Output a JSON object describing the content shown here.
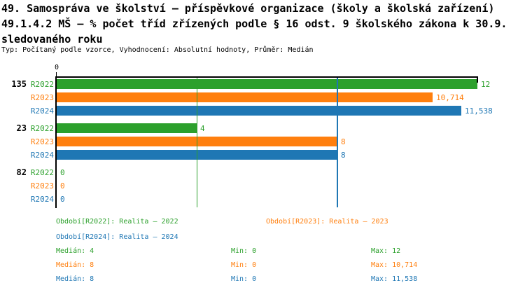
{
  "header": {
    "title_lines": [
      "49. Samospráva ve školství – příspěvkové organizace (školy a školská zařízení)",
      "49.1.4.2 MŠ – % počet tříd zřízených podle § 16 odst. 9 školského zákona k 30.9.",
      "sledovaného roku"
    ],
    "meta": "Typ: Počítaný podle vzorce, Vyhodnocení: Absolutní hodnoty, Průměr: Medián"
  },
  "colors": {
    "r2022": "#2CA02C",
    "r2023": "#FF7F0E",
    "r2024": "#1F77B4",
    "axis": "#000000"
  },
  "chart_data": {
    "type": "bar",
    "orientation": "horizontal",
    "title": "49.1.4.2 MŠ – % počet tříd zřízených podle § 16 odst. 9 školského zákona k 30.9. sledovaného roku",
    "categories": [
      "135",
      "23",
      "82"
    ],
    "series": [
      {
        "name": "R2022",
        "legend": "Období[R2022]: Realita – 2022",
        "color_key": "r2022",
        "values": [
          12,
          4,
          0
        ],
        "value_labels": [
          "12",
          "4",
          "0"
        ],
        "median": 4,
        "min": 0,
        "max": 12
      },
      {
        "name": "R2023",
        "legend": "Období[R2023]: Realita – 2023",
        "color_key": "r2023",
        "values": [
          10.714,
          8,
          0
        ],
        "value_labels": [
          "10,714",
          "8",
          "0"
        ],
        "median": 8,
        "min": 0,
        "max": 10.714
      },
      {
        "name": "R2024",
        "legend": "Období[R2024]: Realita – 2024",
        "color_key": "r2024",
        "values": [
          11.538,
          8,
          0
        ],
        "value_labels": [
          "11,538",
          "8",
          "0"
        ],
        "median": 8,
        "min": 0,
        "max": 11.538
      }
    ],
    "xlim": [
      0,
      12
    ],
    "xticks": [
      {
        "value": 0,
        "label": "0"
      }
    ],
    "median_lines": [
      {
        "series": "R2022",
        "value": 4,
        "color_key": "r2022"
      },
      {
        "series": "R2023",
        "value": 8,
        "color_key": "r2023"
      },
      {
        "series": "R2024",
        "value": 8,
        "color_key": "r2024"
      }
    ],
    "grid": false,
    "legend_position": "bottom"
  },
  "legend": {
    "items": [
      {
        "label": "Období[R2022]: Realita – 2022",
        "color_key": "r2022"
      },
      {
        "label": "Období[R2023]: Realita – 2023",
        "color_key": "r2023"
      },
      {
        "label": "Období[R2024]: Realita – 2024",
        "color_key": "r2024"
      }
    ]
  },
  "stats": {
    "rows": [
      {
        "median": "Medián: 4",
        "min": "Min: 0",
        "max": "Max: 12",
        "color_key": "r2022"
      },
      {
        "median": "Medián: 8",
        "min": "Min: 0",
        "max": "Max: 10,714",
        "color_key": "r2023"
      },
      {
        "median": "Medián: 8",
        "min": "Min: 0",
        "max": "Max: 11,538",
        "color_key": "r2024"
      }
    ]
  }
}
